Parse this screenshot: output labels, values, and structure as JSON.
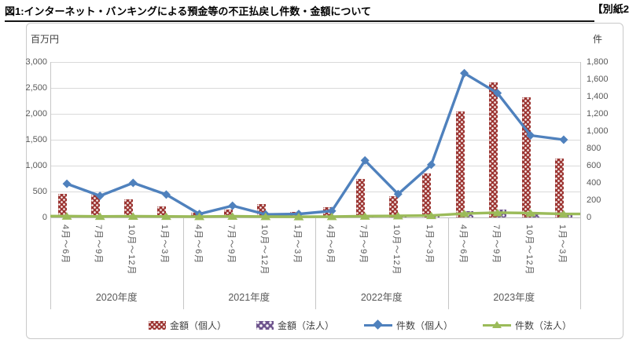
{
  "title": "図1:インターネット・バンキングによる預金等の不正払戻し件数・金額について",
  "corner_note": "【別紙2",
  "chart_data": {
    "type": "bar+line",
    "left_axis": {
      "label": "百万円",
      "min": 0,
      "max": 3000,
      "step": 500
    },
    "right_axis": {
      "label": "件",
      "min": 0,
      "max": 1800,
      "step": 200
    },
    "groups": [
      "2020年度",
      "2021年度",
      "2022年度",
      "2023年度"
    ],
    "quarters": [
      "4月～6月",
      "7月～9月",
      "10月～12月",
      "1月～3月"
    ],
    "grid": true,
    "legend_position": "bottom",
    "series": [
      {
        "name": "金額（個人）",
        "type": "bar",
        "axis": "left",
        "color": "#9c3532",
        "marker": "dotted-swatch",
        "values": [
          460,
          445,
          355,
          215,
          90,
          150,
          255,
          100,
          190,
          740,
          410,
          850,
          2045,
          2600,
          2320,
          1130
        ]
      },
      {
        "name": "金額（法人）",
        "type": "bar",
        "axis": "left",
        "color": "#6e548d",
        "marker": "checked-swatch",
        "values": [
          5,
          5,
          5,
          5,
          12,
          40,
          15,
          6,
          6,
          12,
          18,
          30,
          120,
          150,
          100,
          50
        ]
      },
      {
        "name": "件数（個人）",
        "type": "line",
        "axis": "right",
        "color": "#4f81bd",
        "marker": "diamond",
        "values": [
          390,
          250,
          400,
          265,
          40,
          135,
          35,
          40,
          75,
          660,
          270,
          610,
          1670,
          1440,
          950,
          900
        ]
      },
      {
        "name": "件数（法人）",
        "type": "line",
        "axis": "right",
        "color": "#9bbb59",
        "marker": "triangle",
        "values": [
          15,
          12,
          14,
          12,
          10,
          14,
          10,
          8,
          10,
          15,
          18,
          22,
          45,
          55,
          50,
          40
        ]
      }
    ]
  }
}
